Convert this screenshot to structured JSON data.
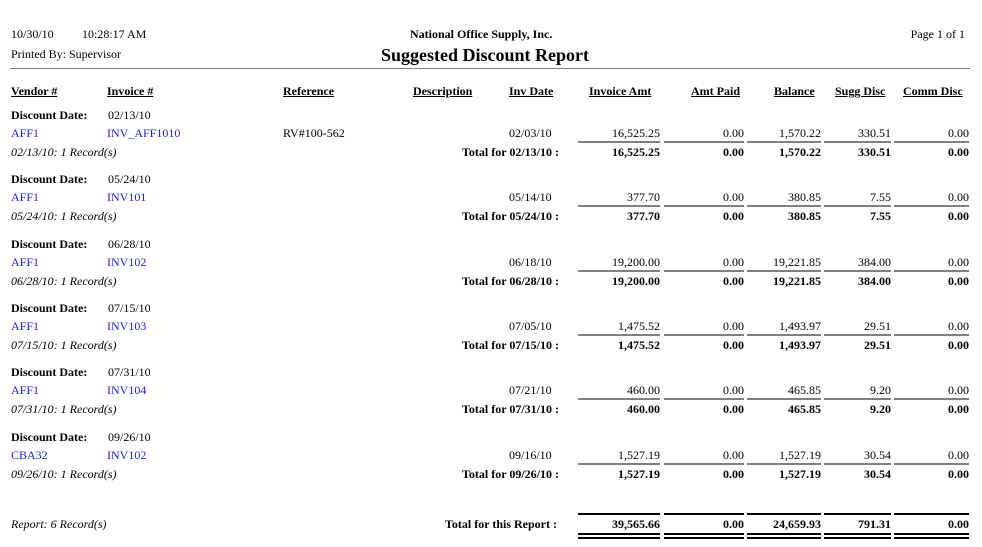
{
  "header": {
    "date": "10/30/10",
    "time": "10:28:17 AM",
    "printed_by": "Printed By: Supervisor",
    "company": "National Office Supply, Inc.",
    "title": "Suggested Discount Report",
    "page": "Page 1 of  1"
  },
  "columns": {
    "vendor": "Vendor #",
    "invoice": "Invoice #",
    "reference": "Reference",
    "description": "Description",
    "inv_date": "Inv Date",
    "invoice_amt": "Invoice Amt",
    "amt_paid": "Amt Paid",
    "balance": "Balance",
    "sugg_disc": "Sugg Disc",
    "comm_disc": "Comm Disc"
  },
  "discount_date_label": "Discount Date:",
  "groups": [
    {
      "date": "02/13/10",
      "vendor": "AFF1",
      "invoice": "INV_AFF1010",
      "reference": "RV#100-562",
      "inv_date": "02/03/10",
      "invoice_amt": "16,525.25",
      "amt_paid": "0.00",
      "balance": "1,570.22",
      "sugg_disc": "330.51",
      "comm_disc": "0.00",
      "records": "02/13/10: 1 Record(s)",
      "total_label": "Total for 02/13/10 :",
      "t_invoice_amt": "16,525.25",
      "t_amt_paid": "0.00",
      "t_balance": "1,570.22",
      "t_sugg_disc": "330.51",
      "t_comm_disc": "0.00"
    },
    {
      "date": "05/24/10",
      "vendor": "AFF1",
      "invoice": "INV101",
      "reference": "",
      "inv_date": "05/14/10",
      "invoice_amt": "377.70",
      "amt_paid": "0.00",
      "balance": "380.85",
      "sugg_disc": "7.55",
      "comm_disc": "0.00",
      "records": "05/24/10: 1 Record(s)",
      "total_label": "Total for 05/24/10 :",
      "t_invoice_amt": "377.70",
      "t_amt_paid": "0.00",
      "t_balance": "380.85",
      "t_sugg_disc": "7.55",
      "t_comm_disc": "0.00"
    },
    {
      "date": "06/28/10",
      "vendor": "AFF1",
      "invoice": "INV102",
      "reference": "",
      "inv_date": "06/18/10",
      "invoice_amt": "19,200.00",
      "amt_paid": "0.00",
      "balance": "19,221.85",
      "sugg_disc": "384.00",
      "comm_disc": "0.00",
      "records": "06/28/10: 1 Record(s)",
      "total_label": "Total for 06/28/10 :",
      "t_invoice_amt": "19,200.00",
      "t_amt_paid": "0.00",
      "t_balance": "19,221.85",
      "t_sugg_disc": "384.00",
      "t_comm_disc": "0.00"
    },
    {
      "date": "07/15/10",
      "vendor": "AFF1",
      "invoice": "INV103",
      "reference": "",
      "inv_date": "07/05/10",
      "invoice_amt": "1,475.52",
      "amt_paid": "0.00",
      "balance": "1,493.97",
      "sugg_disc": "29.51",
      "comm_disc": "0.00",
      "records": "07/15/10: 1 Record(s)",
      "total_label": "Total for 07/15/10 :",
      "t_invoice_amt": "1,475.52",
      "t_amt_paid": "0.00",
      "t_balance": "1,493.97",
      "t_sugg_disc": "29.51",
      "t_comm_disc": "0.00"
    },
    {
      "date": "07/31/10",
      "vendor": "AFF1",
      "invoice": "INV104",
      "reference": "",
      "inv_date": "07/21/10",
      "invoice_amt": "460.00",
      "amt_paid": "0.00",
      "balance": "465.85",
      "sugg_disc": "9.20",
      "comm_disc": "0.00",
      "records": "07/31/10: 1 Record(s)",
      "total_label": "Total for 07/31/10 :",
      "t_invoice_amt": "460.00",
      "t_amt_paid": "0.00",
      "t_balance": "465.85",
      "t_sugg_disc": "9.20",
      "t_comm_disc": "0.00"
    },
    {
      "date": "09/26/10",
      "vendor": "CBA32",
      "invoice": "INV102",
      "reference": "",
      "inv_date": "09/16/10",
      "invoice_amt": "1,527.19",
      "amt_paid": "0.00",
      "balance": "1,527.19",
      "sugg_disc": "30.54",
      "comm_disc": "0.00",
      "records": "09/26/10: 1 Record(s)",
      "total_label": "Total for 09/26/10 :",
      "t_invoice_amt": "1,527.19",
      "t_amt_paid": "0.00",
      "t_balance": "1,527.19",
      "t_sugg_disc": "30.54",
      "t_comm_disc": "0.00"
    }
  ],
  "report_total": {
    "records": "Report: 6 Record(s)",
    "label": "Total for this Report :",
    "invoice_amt": "39,565.66",
    "amt_paid": "0.00",
    "balance": "24,659.93",
    "sugg_disc": "791.31",
    "comm_disc": "0.00"
  }
}
